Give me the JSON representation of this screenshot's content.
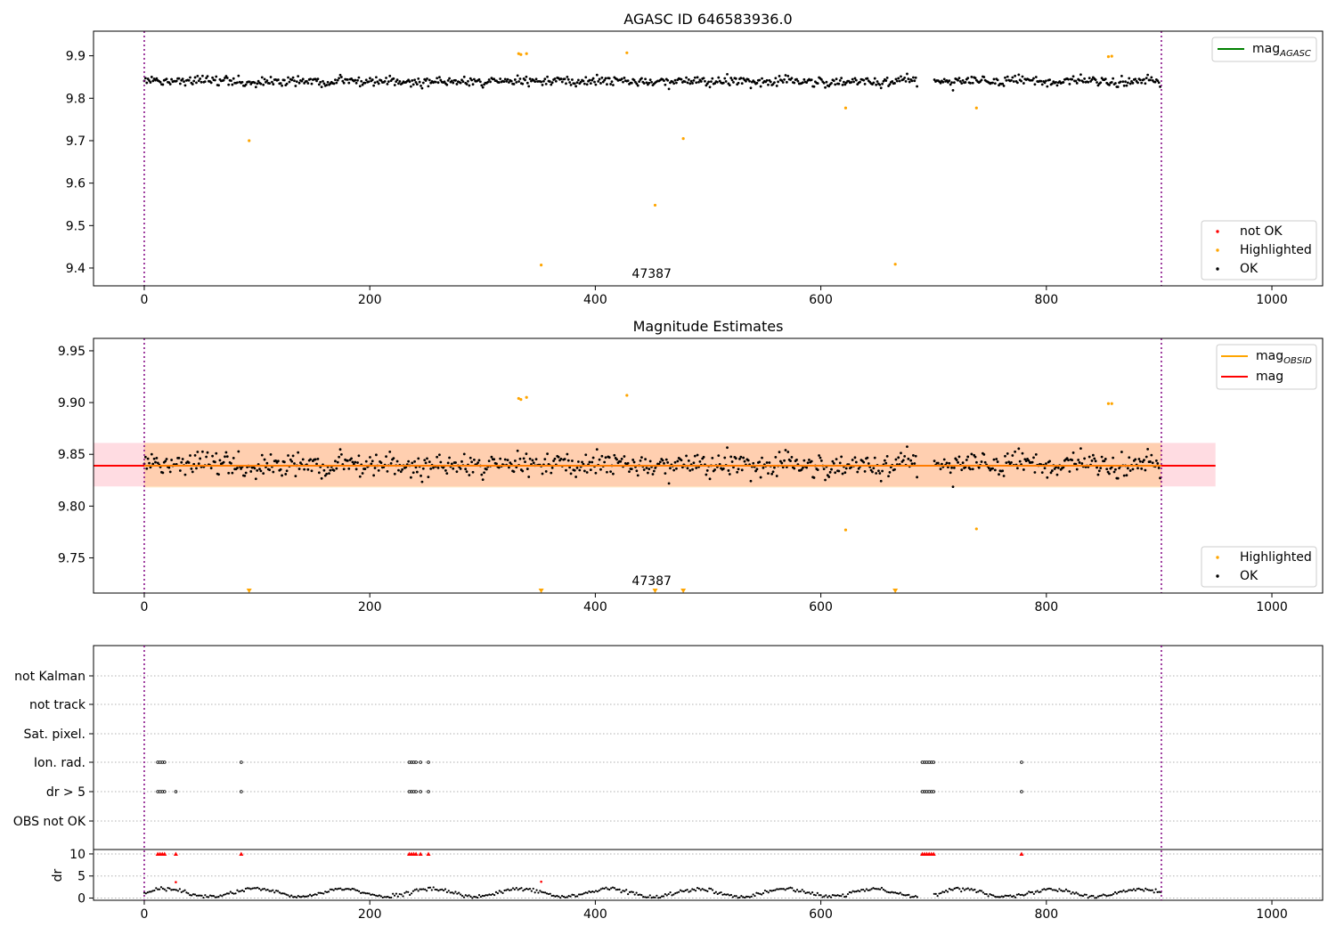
{
  "chart_data": [
    {
      "type": "scatter",
      "title": "AGASC ID 646583936.0",
      "xlim": [
        -45,
        1045
      ],
      "ylim": [
        9.358,
        9.958
      ],
      "xticks": [
        0,
        200,
        400,
        600,
        800,
        1000
      ],
      "yticks": [
        9.4,
        9.5,
        9.6,
        9.7,
        9.8,
        9.9
      ],
      "ytick_decimals": 1,
      "obsid_label": "47387",
      "obsid_label_x": 450,
      "boundaries": [
        0,
        902
      ],
      "ok_baseline": 9.84,
      "ok_noise": 0.016,
      "ok_gaps": [
        [
          686,
          700
        ]
      ],
      "series": [
        {
          "name": "not OK",
          "color": "#ff0000",
          "x": [],
          "y": []
        },
        {
          "name": "Highlighted",
          "color": "#ffa500",
          "x": [
            93,
            332,
            334,
            339,
            352,
            428,
            453,
            478,
            622,
            666,
            738,
            855,
            858
          ],
          "y": [
            9.7,
            9.905,
            9.903,
            9.905,
            9.407,
            9.907,
            9.548,
            9.705,
            9.777,
            9.409,
            9.777,
            9.898,
            9.899
          ]
        },
        {
          "name": "OK",
          "color": "#000000",
          "x": [],
          "y": []
        }
      ],
      "line_legend": [
        {
          "label": "mag",
          "sub": "AGASC",
          "color": "#008000"
        }
      ],
      "marker_legend": [
        {
          "label": "not OK",
          "color": "#ff0000"
        },
        {
          "label": "Highlighted",
          "color": "#ffa500"
        },
        {
          "label": "OK",
          "color": "#000000"
        }
      ]
    },
    {
      "type": "scatter",
      "title": "Magnitude Estimates",
      "xlim": [
        -45,
        1045
      ],
      "ylim": [
        9.716,
        9.962
      ],
      "xticks": [
        0,
        200,
        400,
        600,
        800,
        1000
      ],
      "yticks": [
        9.75,
        9.8,
        9.85,
        9.9,
        9.95
      ],
      "ytick_decimals": 2,
      "obsid_label": "47387",
      "obsid_label_x": 450,
      "boundaries": [
        0,
        902
      ],
      "ok_baseline": 9.84,
      "ok_noise": 0.016,
      "ok_gaps": [
        [
          686,
          700
        ]
      ],
      "mean_mag": 9.839,
      "mean_band": [
        9.819,
        9.861
      ],
      "band_x_end": 950,
      "obsid_band": [
        9.818,
        9.861
      ],
      "obsid_band_x": [
        0,
        902
      ],
      "series": [
        {
          "name": "Highlighted",
          "color": "#ffa500",
          "x": [
            332,
            334,
            339,
            428,
            622,
            738,
            855,
            858
          ],
          "y": [
            9.904,
            9.903,
            9.905,
            9.907,
            9.777,
            9.778,
            9.899,
            9.899
          ]
        },
        {
          "name": "OK",
          "color": "#000000",
          "x": [],
          "y": []
        }
      ],
      "below_axis_markers_x": [
        93,
        352,
        453,
        478,
        666
      ],
      "line_legend": [
        {
          "label": "mag",
          "sub": "OBSID",
          "color": "#ffa500"
        },
        {
          "label": "mag",
          "sub": "",
          "color": "#ff0000"
        }
      ],
      "marker_legend": [
        {
          "label": "Highlighted",
          "color": "#ffa500"
        },
        {
          "label": "OK",
          "color": "#000000"
        }
      ]
    },
    {
      "type": "scatter",
      "title": "",
      "xlim": [
        -45,
        1045
      ],
      "xticks": [
        0,
        200,
        400,
        600,
        800,
        1000
      ],
      "boundaries": [
        0,
        902
      ],
      "flag_rows": [
        "not Kalman",
        "not track",
        "Sat. pixel.",
        "Ion. rad.",
        "dr > 5",
        "OBS not OK"
      ],
      "flags": {
        "Ion. rad.": [
          12,
          14,
          16,
          18,
          86,
          235,
          237,
          239,
          241,
          245,
          252,
          690,
          692,
          694,
          696,
          698,
          700,
          778
        ],
        "dr > 5": [
          12,
          14,
          16,
          18,
          28,
          86,
          235,
          237,
          239,
          241,
          245,
          252,
          690,
          692,
          694,
          696,
          698,
          700,
          778
        ]
      },
      "dr_ylabel": "dr",
      "dr_yticks": [
        0,
        5,
        10
      ],
      "dr_ylim": [
        -0.5,
        11
      ],
      "dr_clipped_x": [
        12,
        14,
        16,
        18,
        28,
        86,
        235,
        237,
        239,
        241,
        245,
        252,
        690,
        692,
        694,
        696,
        698,
        700,
        778
      ],
      "dr_outliers": {
        "x": [
          28,
          352
        ],
        "y": [
          3.6,
          3.7
        ]
      }
    }
  ]
}
